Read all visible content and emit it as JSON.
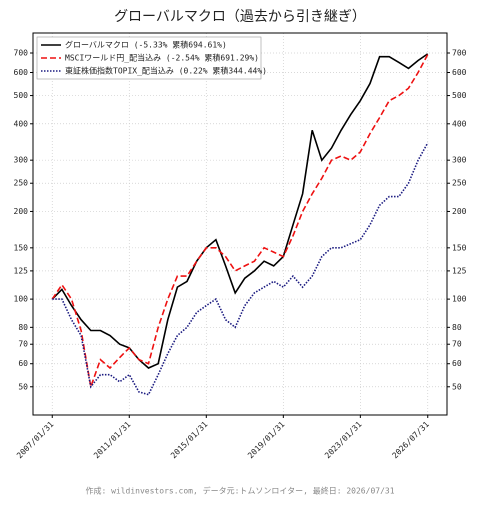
{
  "chart_data": {
    "type": "line",
    "title": "グローバルマクロ（過去から引き継ぎ）",
    "footer": "作成: wildinvestors.com, データ元:トムソンロイター, 最終日: 2026/07/31",
    "x": [
      "2007/01/31",
      "2007/07/31",
      "2008/01/31",
      "2008/07/31",
      "2009/01/31",
      "2009/07/31",
      "2010/01/31",
      "2010/07/31",
      "2011/01/31",
      "2011/07/31",
      "2012/01/31",
      "2012/07/31",
      "2013/01/31",
      "2013/07/31",
      "2014/01/31",
      "2014/07/31",
      "2015/01/31",
      "2015/07/31",
      "2016/01/31",
      "2016/07/31",
      "2017/01/31",
      "2017/07/31",
      "2018/01/31",
      "2018/07/31",
      "2019/01/31",
      "2019/07/31",
      "2020/01/31",
      "2020/07/31",
      "2021/01/31",
      "2021/07/31",
      "2022/01/31",
      "2022/07/31",
      "2023/01/31",
      "2023/07/31",
      "2024/01/31",
      "2024/07/31",
      "2025/01/31",
      "2025/07/31",
      "2026/01/31",
      "2026/07/31"
    ],
    "series": [
      {
        "name": "グローバルマクロ (-5.33% 累積694.61%)",
        "color": "#000000",
        "dash": "solid",
        "values": [
          100,
          108,
          95,
          85,
          78,
          78,
          75,
          70,
          68,
          62,
          58,
          60,
          85,
          110,
          115,
          135,
          150,
          160,
          130,
          105,
          118,
          125,
          135,
          130,
          140,
          180,
          230,
          380,
          300,
          330,
          380,
          430,
          480,
          550,
          680,
          680,
          650,
          620,
          660,
          695
        ]
      },
      {
        "name": "MSCIワールド円_配当込み (-2.54% 累積691.29%)",
        "color": "#ee1111",
        "dash": "dashed",
        "values": [
          100,
          112,
          100,
          78,
          50,
          62,
          58,
          63,
          68,
          62,
          60,
          80,
          100,
          120,
          120,
          135,
          150,
          150,
          140,
          125,
          130,
          135,
          150,
          145,
          140,
          165,
          200,
          230,
          260,
          300,
          310,
          300,
          320,
          370,
          420,
          480,
          500,
          530,
          600,
          691
        ]
      },
      {
        "name": "東証株価指数TOPIX_配当込み (0.22% 累積344.44%)",
        "color": "#1a1a80",
        "dash": "dotted",
        "values": [
          100,
          100,
          85,
          75,
          50,
          55,
          55,
          52,
          55,
          48,
          47,
          55,
          65,
          75,
          80,
          90,
          95,
          100,
          85,
          80,
          95,
          105,
          110,
          115,
          110,
          120,
          110,
          120,
          140,
          150,
          150,
          155,
          160,
          180,
          210,
          225,
          225,
          250,
          300,
          344
        ]
      }
    ],
    "xlim": [
      "2006/01/31",
      "2027/07/31"
    ],
    "xticks": [
      "2007/01/31",
      "2011/01/31",
      "2015/01/31",
      "2019/01/31",
      "2023/01/31",
      "2026/07/31"
    ],
    "ylim": [
      40,
      820
    ],
    "yticks": [
      50,
      60,
      70,
      80,
      100,
      125,
      150,
      200,
      250,
      300,
      400,
      500,
      600,
      700
    ],
    "log_y": true,
    "grid": true,
    "legend": "upper-left"
  }
}
